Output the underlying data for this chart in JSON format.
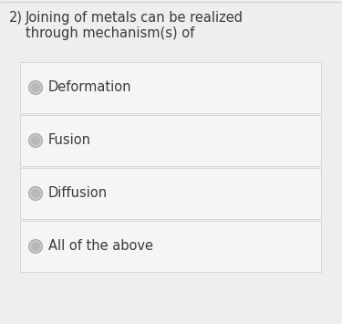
{
  "question_number": "2)",
  "question_text_line1": "Joining of metals can be realized",
  "question_text_line2": "through mechanism(s) of",
  "options": [
    "Deformation",
    "Fusion",
    "Diffusion",
    "All of the above"
  ],
  "bg_color": "#eeeeee",
  "card_color": "#f5f5f5",
  "card_border_color": "#d8d8d8",
  "question_text_color": "#3a3a3a",
  "option_text_color": "#3a3a3a",
  "radio_outer_color": "#c8c8c8",
  "radio_inner_color": "#b8b8b8",
  "top_line_color": "#cccccc",
  "question_fontsize": 10.5,
  "option_fontsize": 10.5
}
